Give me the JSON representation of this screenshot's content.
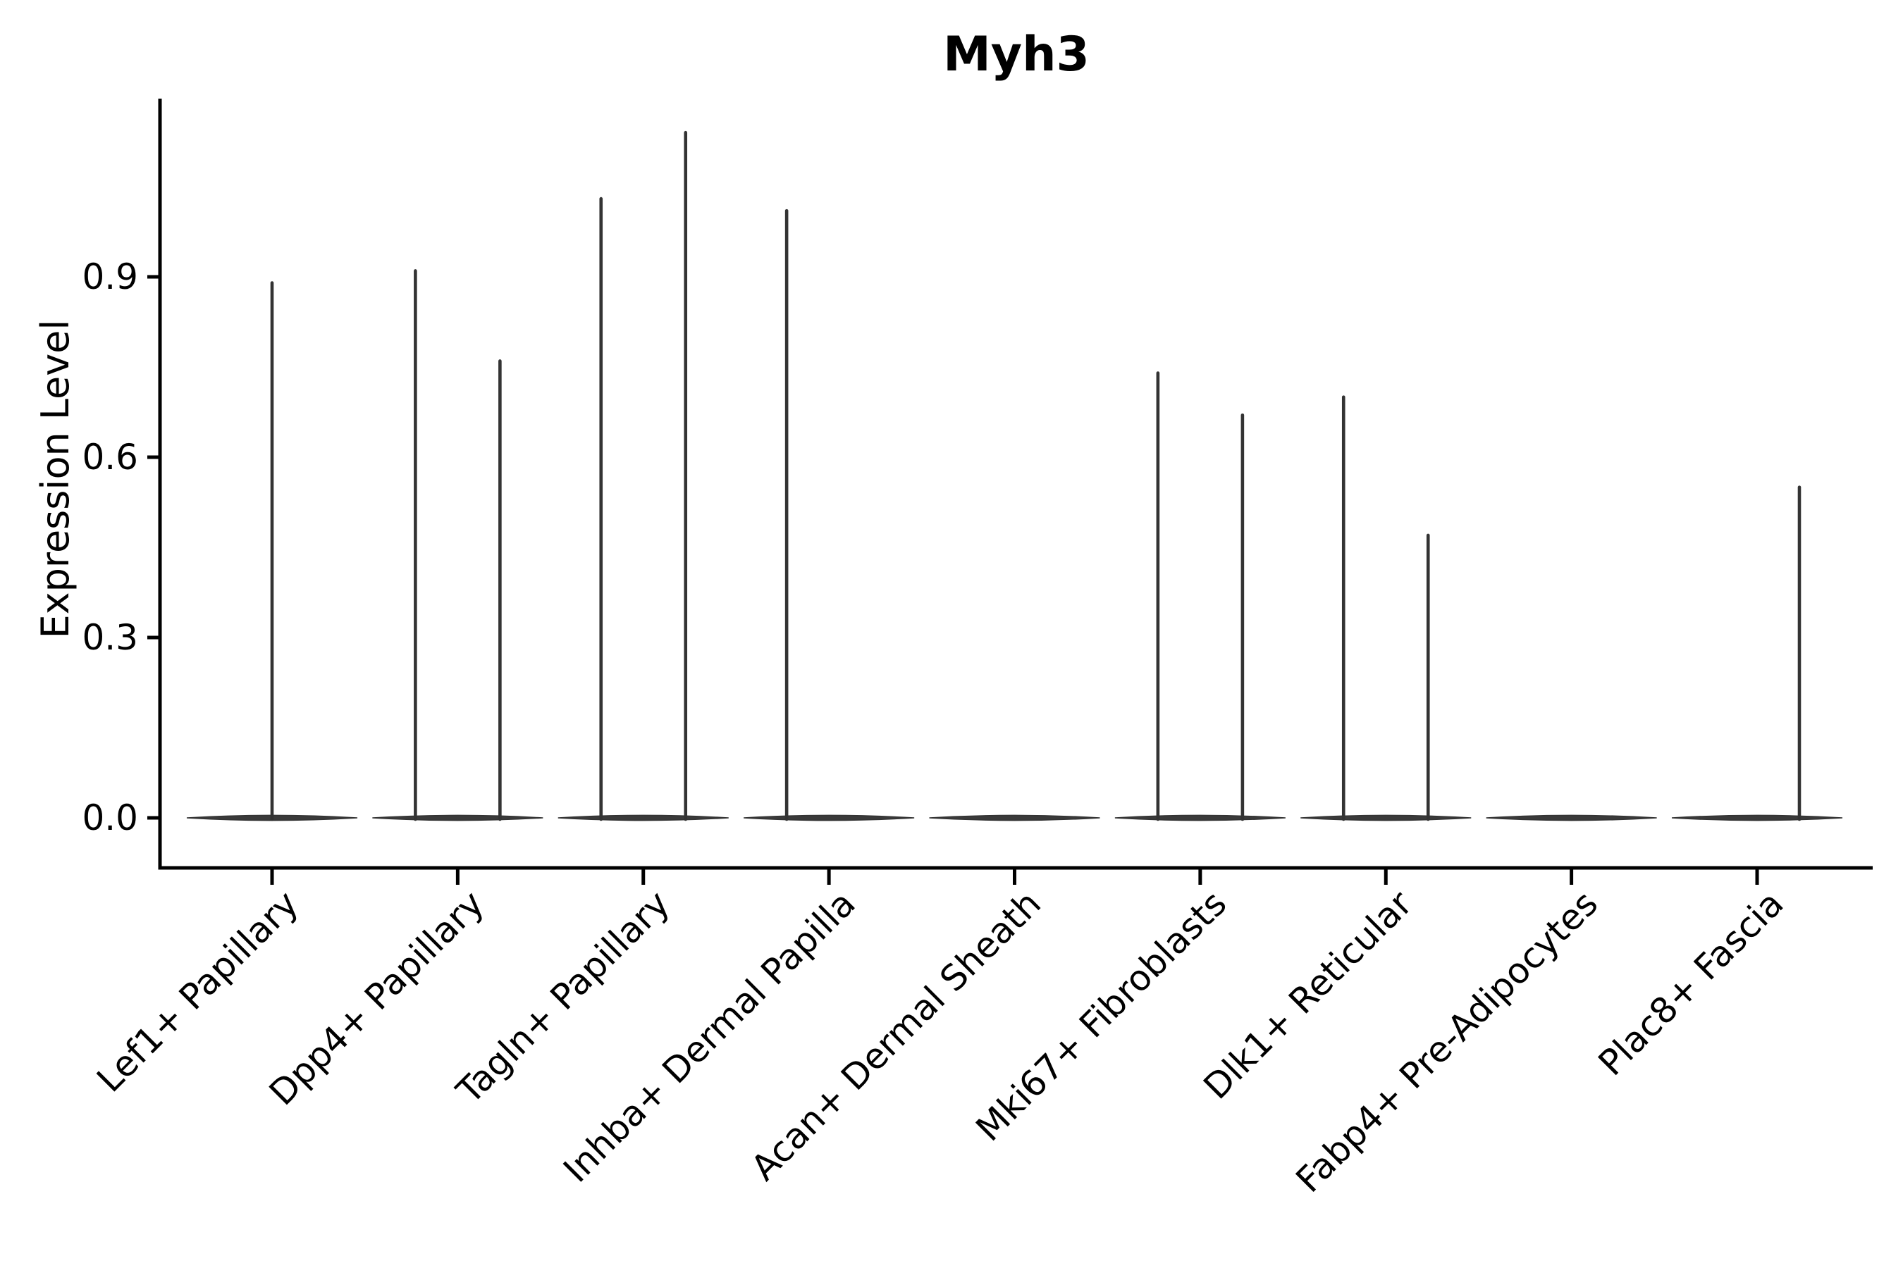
{
  "chart_data": {
    "type": "violin",
    "title": "Myh3",
    "ylabel": "Expression Level",
    "xlabel": "",
    "ytick_labels": [
      "0.0",
      "0.3",
      "0.6",
      "0.9"
    ],
    "yticks": [
      0.0,
      0.3,
      0.6,
      0.9
    ],
    "ylim": [
      -0.083,
      1.2
    ],
    "grid": false,
    "legend": "none",
    "background_color": "#ffffff",
    "axis_color": "#000000",
    "ink_color": "#333333",
    "violin_description": "flat zero-expression baseline per category with thin density spikes at expressed values",
    "categories": [
      {
        "label": "Lef1+ Papillary",
        "spikes": [
          {
            "pos": "center",
            "value": 0.89
          }
        ]
      },
      {
        "label": "Dpp4+ Papillary",
        "spikes": [
          {
            "pos": "left",
            "value": 0.91
          },
          {
            "pos": "right",
            "value": 0.76
          }
        ]
      },
      {
        "label": "Tagln+ Papillary",
        "spikes": [
          {
            "pos": "left",
            "value": 1.03
          },
          {
            "pos": "right",
            "value": 1.14
          }
        ]
      },
      {
        "label": "Inhba+ Dermal Papilla",
        "spikes": [
          {
            "pos": "left",
            "value": 1.01
          }
        ]
      },
      {
        "label": "Acan+ Dermal Sheath",
        "spikes": []
      },
      {
        "label": "Mki67+ Fibroblasts",
        "spikes": [
          {
            "pos": "left",
            "value": 0.74
          },
          {
            "pos": "right",
            "value": 0.67
          }
        ]
      },
      {
        "label": "Dlk1+ Reticular",
        "spikes": [
          {
            "pos": "left",
            "value": 0.7
          },
          {
            "pos": "right",
            "value": 0.47
          }
        ]
      },
      {
        "label": "Fabp4+ Pre-Adipocytes",
        "spikes": []
      },
      {
        "label": "Plac8+ Fascia",
        "spikes": [
          {
            "pos": "right",
            "value": 0.55
          }
        ]
      }
    ]
  }
}
